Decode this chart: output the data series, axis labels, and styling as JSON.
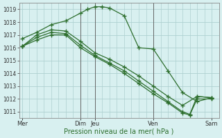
{
  "bg_color": "#d8f0f0",
  "grid_color": "#aed0d0",
  "line_color": "#2d6e2d",
  "xlabel": "Pression niveau de la mer( hPa )",
  "ylim": [
    1010.5,
    1019.5
  ],
  "yticks": [
    1011,
    1012,
    1013,
    1014,
    1015,
    1016,
    1017,
    1018,
    1019
  ],
  "xlim": [
    -0.2,
    13.5
  ],
  "major_xticks_x": [
    0,
    4.0,
    5.0,
    9.0,
    13.0
  ],
  "major_xtick_labels": [
    "Mer",
    "Dim",
    "Jeu",
    "Ven",
    "Sam"
  ],
  "vlines_x": [
    4.0,
    5.0,
    9.0
  ],
  "line1_x": [
    0,
    1,
    2,
    3,
    4,
    4.5,
    5,
    5.5,
    6,
    7,
    8,
    9,
    10,
    11,
    12,
    13
  ],
  "line1_y": [
    1016.7,
    1017.2,
    1017.8,
    1018.1,
    1018.7,
    1019.0,
    1019.2,
    1019.2,
    1019.1,
    1018.5,
    1016.0,
    1015.9,
    1014.2,
    1012.5,
    1011.8,
    1012.1
  ],
  "line2_x": [
    0,
    1,
    2,
    3,
    4,
    5,
    6,
    7,
    8,
    9,
    10,
    11,
    12,
    13
  ],
  "line2_y": [
    1016.1,
    1017.0,
    1017.4,
    1017.3,
    1016.5,
    1015.6,
    1015.1,
    1014.5,
    1013.8,
    1013.0,
    1012.2,
    1011.5,
    1012.2,
    1012.1
  ],
  "line3_x": [
    0,
    1,
    2,
    3,
    4,
    5,
    6,
    7,
    8,
    9,
    10,
    11,
    11.5,
    12,
    13
  ],
  "line3_y": [
    1016.1,
    1016.8,
    1017.2,
    1017.1,
    1016.2,
    1015.4,
    1014.8,
    1014.2,
    1013.4,
    1012.6,
    1011.8,
    1011.0,
    1010.8,
    1012.2,
    1012.1
  ],
  "line4_x": [
    0,
    1,
    2,
    3,
    4,
    5,
    6,
    7,
    8,
    9,
    10,
    11,
    11.5,
    12,
    13
  ],
  "line4_y": [
    1016.1,
    1016.6,
    1017.0,
    1017.0,
    1016.0,
    1015.3,
    1014.7,
    1014.0,
    1013.2,
    1012.4,
    1011.7,
    1010.9,
    1010.75,
    1012.0,
    1012.0
  ],
  "minor_xticks": [
    0,
    0.5,
    1,
    1.5,
    2,
    2.5,
    3,
    3.5,
    4,
    4.5,
    5,
    5.5,
    6,
    6.5,
    7,
    7.5,
    8,
    8.5,
    9,
    9.5,
    10,
    10.5,
    11,
    11.5,
    12,
    12.5,
    13
  ]
}
